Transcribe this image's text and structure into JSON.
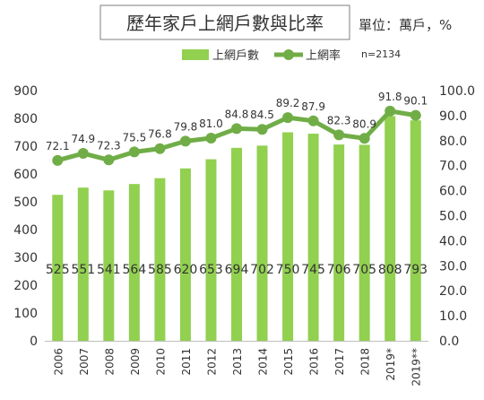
{
  "chart_data": {
    "type": "bar",
    "title": "歷年家戶上網戶數與比率",
    "unit_note": "單位：萬戶，%",
    "sample_note": "n=2134",
    "categories": [
      "2006",
      "2007",
      "2008",
      "2009",
      "2010",
      "2011",
      "2012",
      "2013",
      "2014",
      "2015",
      "2016",
      "2017",
      "2018",
      "2019*",
      "2019**"
    ],
    "series": [
      {
        "name": "上網戶數",
        "type": "bar",
        "axis": "left",
        "color": "#92d050",
        "values": [
          525,
          551,
          541,
          564,
          585,
          620,
          653,
          694,
          702,
          750,
          745,
          706,
          705,
          808,
          793
        ],
        "labels": [
          "525",
          "551",
          "541",
          "564",
          "585",
          "620",
          "653",
          "694",
          "702",
          "750",
          "745",
          "706",
          "705",
          "808",
          "793"
        ]
      },
      {
        "name": "上網率",
        "type": "line",
        "axis": "right",
        "color": "#70ad47",
        "values": [
          72.1,
          74.9,
          72.3,
          75.5,
          76.8,
          79.8,
          81.0,
          84.8,
          84.5,
          89.2,
          87.9,
          82.3,
          80.9,
          91.8,
          90.1
        ],
        "labels": [
          "72.1",
          "74.9",
          "72.3",
          "75.5",
          "76.8",
          "79.8",
          "81.0",
          "84.8",
          "84.5",
          "89.2",
          "87.9",
          "82.3",
          "80.9",
          "91.8",
          "90.1"
        ]
      }
    ],
    "y_left": {
      "min": 0,
      "max": 900,
      "step": 100,
      "ticks": [
        "0",
        "100",
        "200",
        "300",
        "400",
        "500",
        "600",
        "700",
        "800",
        "900"
      ]
    },
    "y_right": {
      "min": 0,
      "max": 100,
      "step": 10,
      "ticks": [
        "0.0",
        "10.0",
        "20.0",
        "30.0",
        "40.0",
        "50.0",
        "60.0",
        "70.0",
        "80.0",
        "90.0",
        "100.0"
      ]
    },
    "legend_position": "top-center",
    "grid": false
  }
}
